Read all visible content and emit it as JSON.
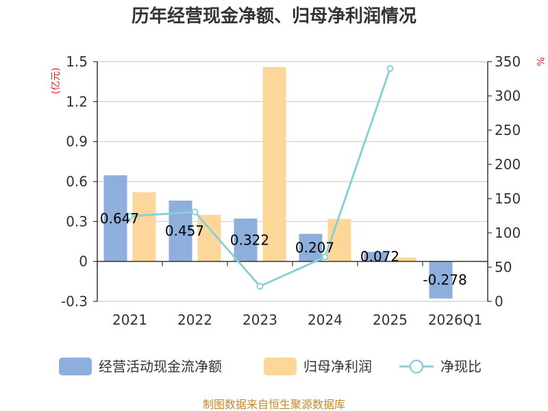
{
  "chart_data": {
    "type": "bar",
    "title": "历年经营现金净额、归母净利润情况",
    "categories": [
      "2021",
      "2022",
      "2023",
      "2024",
      "2025",
      "2026Q1"
    ],
    "y_left": {
      "unit": "(亿元)",
      "ticks": [
        "1.5",
        "1.2",
        "0.9",
        "0.6",
        "0.3",
        "0",
        "-0.3"
      ],
      "ylim": [
        -0.3,
        1.5
      ]
    },
    "y_right": {
      "unit": "%",
      "ticks": [
        "350",
        "300",
        "250",
        "200",
        "150",
        "100",
        "50",
        "0"
      ],
      "ylim": [
        0,
        350
      ]
    },
    "series": [
      {
        "name": "经营活动现金流净额",
        "type": "bar",
        "axis": "left",
        "color": "#8eaedb",
        "values": [
          0.647,
          0.457,
          0.322,
          0.207,
          0.072,
          -0.278
        ],
        "labels": [
          "0.647",
          "0.457",
          "0.322",
          "0.207",
          "0.072",
          "-0.278"
        ]
      },
      {
        "name": "归母净利润",
        "type": "bar",
        "axis": "left",
        "color": "#fdd799",
        "values": [
          0.52,
          0.35,
          1.46,
          0.32,
          0.03,
          0.005
        ]
      },
      {
        "name": "净现比",
        "type": "line",
        "axis": "right",
        "color": "#8ad0d6",
        "values": [
          124.4,
          130.6,
          22.1,
          64.7,
          340.0,
          null
        ]
      }
    ],
    "grid": true,
    "legend": "bottom"
  },
  "footer": {
    "source": "制图数据来自恒生聚源数据库"
  }
}
